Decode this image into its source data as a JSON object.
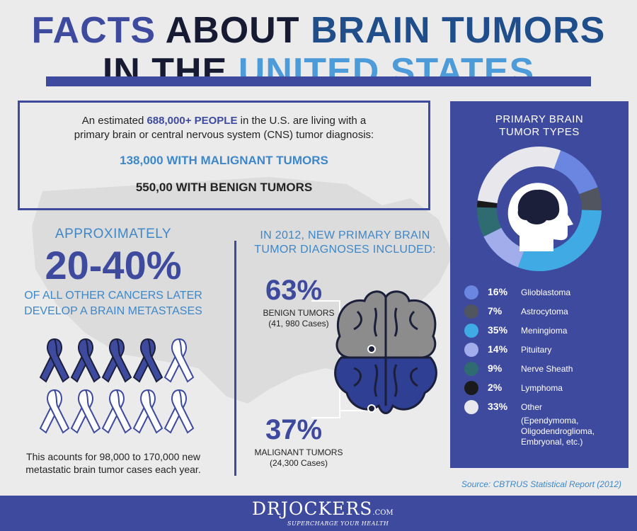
{
  "title": {
    "line1_part1": "FACTS",
    "line1_part2": "ABOUT",
    "line1_part3": "BRAIN TUMORS",
    "line2_part1": "IN THE",
    "line2_part2": "UNITED STATES"
  },
  "summary": {
    "intro_before": "An estimated ",
    "intro_highlight": "688,000+ PEOPLE",
    "intro_after": " in the U.S. are living with a",
    "intro_line2": "primary brain or central nervous system (CNS) tumor diagnosis:",
    "malignant": "138,000 WITH MALIGNANT TUMORS",
    "benign": "550,00 WITH BENIGN TUMORS"
  },
  "metastases": {
    "approx": "APPROXIMATELY",
    "percent": "20-40%",
    "line1": "OF ALL OTHER CANCERS LATER",
    "line2": "DEVELOP A BRAIN METASTASES",
    "ribbons_total": 10,
    "ribbons_filled": 4,
    "accounts_line1": "This acounts for 98,000 to 170,000 new",
    "accounts_line2": "metastatic brain tumor cases each year."
  },
  "diagnoses": {
    "heading_line1": "IN 2012, NEW PRIMARY BRAIN",
    "heading_line2": "TUMOR DIAGNOSES INCLUDED:",
    "benign_pct": "63%",
    "benign_label": "BENIGN TUMORS",
    "benign_cases": "(41, 980 Cases)",
    "malignant_pct": "37%",
    "malignant_label": "MALIGNANT TUMORS",
    "malignant_cases": "(24,300 Cases)"
  },
  "tumor_types": {
    "title_line1": "PRIMARY BRAIN",
    "title_line2": "TUMOR TYPES",
    "items": [
      {
        "pct": "16%",
        "name": "Glioblastoma",
        "value": 16,
        "color": "#6b86e0"
      },
      {
        "pct": "7%",
        "name": "Astrocytoma",
        "value": 7,
        "color": "#505560"
      },
      {
        "pct": "35%",
        "name": "Meningioma",
        "value": 35,
        "color": "#3faae3"
      },
      {
        "pct": "14%",
        "name": "Pituitary",
        "value": 14,
        "color": "#a2adeb"
      },
      {
        "pct": "9%",
        "name": "Nerve Sheath",
        "value": 9,
        "color": "#2f6c72"
      },
      {
        "pct": "2%",
        "name": "Lymphoma",
        "value": 2,
        "color": "#1a1a1a"
      },
      {
        "pct": "33%",
        "name": "Other",
        "value": 33,
        "color": "#e8e8ec"
      }
    ],
    "other_detail_line1": "(Ependymoma,",
    "other_detail_line2": "Oligodendroglioma,",
    "other_detail_line3": "Embryonal, etc.)"
  },
  "source": "Source: CBTRUS Statistical Report (2012)",
  "footer": {
    "logo_dr": "DR",
    "logo_name": "JOCKERS",
    "logo_com": ".COM",
    "tagline": "SUPERCHARGE YOUR HEALTH"
  },
  "colors": {
    "primary": "#3e4a9e",
    "accent": "#3e87c8",
    "dark": "#171a33",
    "brain_dark": "#2f3f93",
    "brain_grey": "#8c8c8c"
  }
}
